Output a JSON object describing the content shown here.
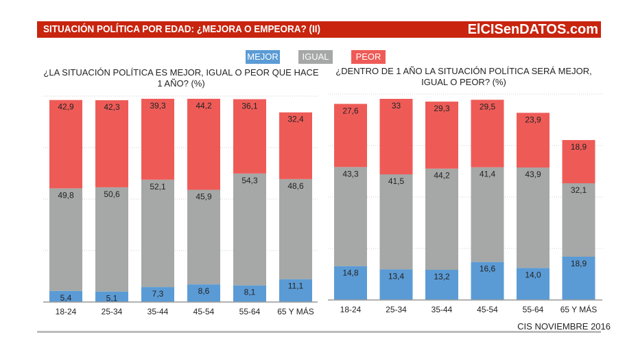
{
  "header": {
    "title": "SITUACIÓN POLÍTICA POR EDAD: ¿MEJORA O EMPEORA? (II)",
    "brand": "ElCISenDATOS.com"
  },
  "legend": [
    {
      "label": "MEJOR",
      "color": "#5b9bd5"
    },
    {
      "label": "IGUAL",
      "color": "#a5a8a6"
    },
    {
      "label": "PEOR",
      "color": "#ee5b57"
    }
  ],
  "source": "CIS NOVIEMBRE 2016",
  "chart_data": [
    {
      "type": "bar",
      "stacked": true,
      "title": "¿LA SITUACIÓN POLÍTICA ES MEJOR, IGUAL O PEOR QUE HACE 1 AÑO? (%)",
      "categories": [
        "18-24",
        "25-34",
        "35-44",
        "45-54",
        "55-64",
        "65 Y MÁS"
      ],
      "series": [
        {
          "name": "MEJOR",
          "values": [
            "5,4",
            "5,1",
            "7,3",
            "8,6",
            "8,1",
            "11,1"
          ]
        },
        {
          "name": "IGUAL",
          "values": [
            "49,8",
            "50,6",
            "52,1",
            "45,9",
            "54,3",
            "48,6"
          ]
        },
        {
          "name": "PEOR",
          "values": [
            "42,9",
            "42,3",
            "39,3",
            "44,2",
            "36,1",
            "32,4"
          ]
        }
      ],
      "ylim": [
        0,
        100
      ],
      "grid": true
    },
    {
      "type": "bar",
      "stacked": true,
      "title": "¿DENTRO DE 1 AÑO LA SITUACIÓN POLÍTICA SERÁ MEJOR, IGUAL O PEOR? (%)",
      "categories": [
        "18-24",
        "25-34",
        "35-44",
        "45-54",
        "55-64",
        "65 Y MÁS"
      ],
      "series": [
        {
          "name": "MEJOR",
          "values": [
            "14,8",
            "13,4",
            "13,2",
            "16,6",
            "14,0",
            "18,9"
          ]
        },
        {
          "name": "IGUAL",
          "values": [
            "43,3",
            "41,5",
            "44,2",
            "41,4",
            "43,9",
            "32,1"
          ]
        },
        {
          "name": "PEOR",
          "values": [
            "27,6",
            "33",
            "29,3",
            "29,5",
            "23,9",
            "18,9"
          ]
        }
      ],
      "ylim": [
        0,
        90
      ],
      "grid": true
    }
  ]
}
